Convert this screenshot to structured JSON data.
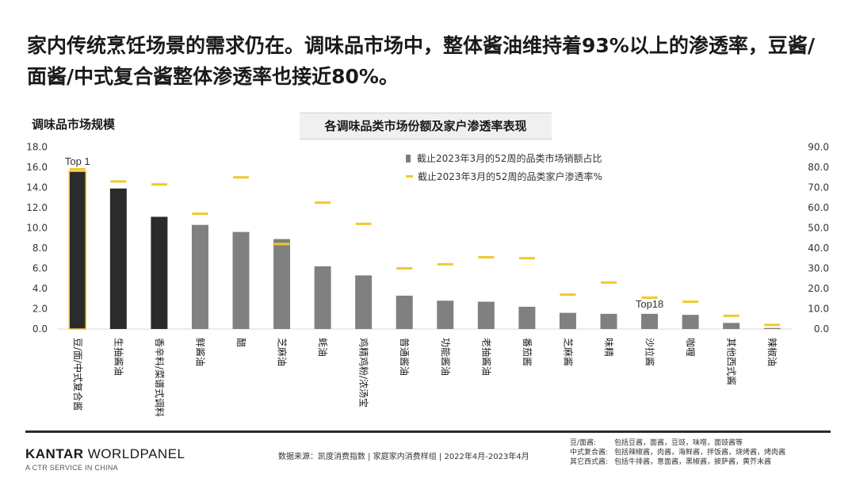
{
  "headline": "家内传统烹饪场景的需求仍在。调味品市场中，整体酱油维持着93%以上的渗透率，豆酱/面酱/中式复合酱整体渗透率也接近80%。",
  "left_label": "调味品市场规模",
  "chart_title": "各调味品类市场份额及家户渗透率表现",
  "legend": {
    "bar": "截止2023年3月的52周的品类市场销额占比",
    "line": "截止2023年3月的52周的品类家户渗透率%"
  },
  "colors": {
    "dark_bar": "#2b2b2b",
    "grey_bar": "#808080",
    "highlight": "#f2c82e",
    "marker": "#f2c82e"
  },
  "chart_data": {
    "type": "bar",
    "categories": [
      "豆/面/中式复合酱",
      "生抽酱油",
      "香辛料/菜谱式调料",
      "鲜酱油",
      "醋",
      "芝麻油",
      "蚝油",
      "鸡精鸡粉/浓汤宝",
      "普通酱油",
      "功能酱油",
      "老抽酱油",
      "番茄酱",
      "芝麻酱",
      "味精",
      "沙拉酱",
      "咖喱",
      "其他西式酱",
      "辣椒油"
    ],
    "series": [
      {
        "name": "截止2023年3月的52周的品类市场销额占比",
        "axis": "left",
        "values": [
          15.6,
          13.9,
          11.1,
          10.3,
          9.6,
          8.9,
          6.2,
          5.3,
          3.3,
          2.8,
          2.7,
          2.2,
          1.6,
          1.5,
          1.5,
          1.4,
          0.6,
          0.1
        ]
      },
      {
        "name": "截止2023年3月的52周的品类家户渗透率%",
        "axis": "right",
        "values": [
          79.0,
          73.0,
          71.5,
          57.0,
          75.0,
          42.0,
          62.5,
          52.0,
          30.0,
          32.0,
          35.5,
          35.0,
          17.0,
          23.0,
          15.5,
          13.5,
          6.5,
          2.0
        ]
      }
    ],
    "bar_style": [
      "highlight",
      "dark",
      "dark",
      "grey",
      "grey",
      "grey",
      "grey",
      "grey",
      "grey",
      "grey",
      "grey",
      "grey",
      "grey",
      "grey",
      "grey",
      "grey",
      "grey",
      "grey"
    ],
    "left_axis": {
      "min": 0,
      "max": 18,
      "ticks": [
        "0.0",
        "2.0",
        "4.0",
        "6.0",
        "8.0",
        "10.0",
        "12.0",
        "14.0",
        "16.0",
        "18.0"
      ]
    },
    "right_axis": {
      "min": 0,
      "max": 90,
      "ticks": [
        "0.0",
        "10.0",
        "20.0",
        "30.0",
        "40.0",
        "50.0",
        "60.0",
        "70.0",
        "80.0",
        "90.0"
      ]
    },
    "annotations": [
      {
        "text": "Top 1",
        "category_index": 0
      },
      {
        "text": "Top18",
        "category_index": 14
      }
    ]
  },
  "footer": {
    "brand_bold": "KANTAR",
    "brand_rest": " WORLDPANEL",
    "brand_sub": "A CTR SERVICE IN CHINA",
    "source": "数据来源：凯度消费指数 | 家庭家内消费样组 | 2022年4月-2023年4月",
    "notes": [
      {
        "key": "豆/面酱:",
        "value": "包括豆酱，面酱，豆豉，味噌，面豉酱等"
      },
      {
        "key": "中式复合酱:",
        "value": "包括辣椒酱，肉酱，海鲜酱，拌饭酱，烧烤酱，烤肉酱"
      },
      {
        "key": "其它西式酱:",
        "value": "包括牛排酱，意面酱，黑椒酱，披萨酱，黄芥末酱"
      }
    ]
  }
}
